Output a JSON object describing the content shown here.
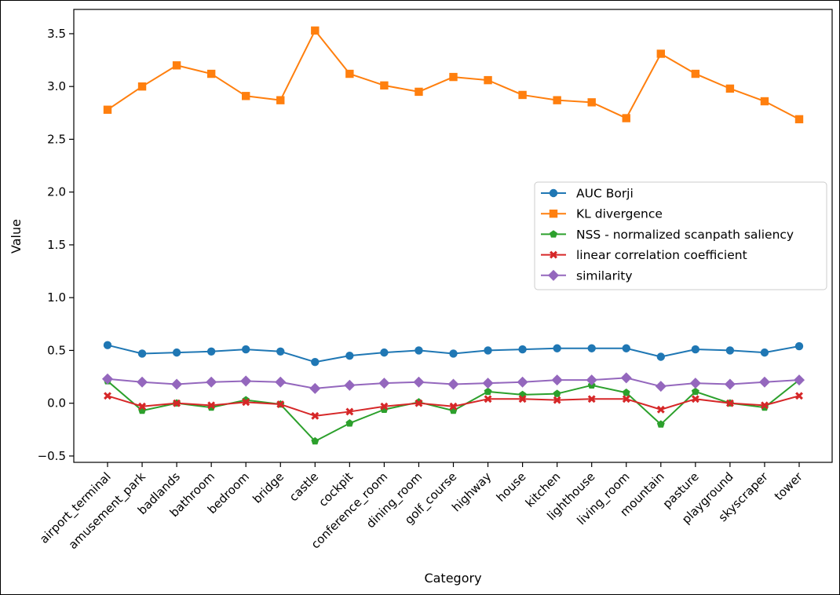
{
  "chart_data": {
    "type": "line",
    "title": "",
    "xlabel": "Category",
    "ylabel": "Value",
    "ylim": [
      -0.56,
      3.73
    ],
    "yticks": [
      -0.5,
      0.0,
      0.5,
      1.0,
      1.5,
      2.0,
      2.5,
      3.0,
      3.5
    ],
    "ytick_labels": [
      "−0.5",
      "0.0",
      "0.5",
      "1.0",
      "1.5",
      "2.0",
      "2.5",
      "3.0",
      "3.5"
    ],
    "grid": false,
    "legend_position": "center-right",
    "categories": [
      "airport_terminal",
      "amusement_park",
      "badlands",
      "bathroom",
      "bedroom",
      "bridge",
      "castle",
      "cockpit",
      "conference_room",
      "dining_room",
      "golf_course",
      "highway",
      "house",
      "kitchen",
      "lighthouse",
      "living_room",
      "mountain",
      "pasture",
      "playground",
      "skyscraper",
      "tower"
    ],
    "series": [
      {
        "name": "AUC Borji",
        "color": "#1f77b4",
        "marker": "circle",
        "values": [
          0.55,
          0.47,
          0.48,
          0.49,
          0.51,
          0.49,
          0.39,
          0.45,
          0.48,
          0.5,
          0.47,
          0.5,
          0.51,
          0.52,
          0.52,
          0.52,
          0.44,
          0.51,
          0.5,
          0.48,
          0.54
        ]
      },
      {
        "name": "KL divergence",
        "color": "#ff7f0e",
        "marker": "square",
        "values": [
          2.78,
          3.0,
          3.2,
          3.12,
          2.91,
          2.87,
          3.53,
          3.12,
          3.01,
          2.95,
          3.09,
          3.06,
          2.92,
          2.87,
          2.85,
          2.7,
          3.31,
          3.12,
          2.98,
          2.86,
          2.69
        ]
      },
      {
        "name": "NSS - normalized scanpath saliency",
        "color": "#2ca02c",
        "marker": "pentagon",
        "values": [
          0.21,
          -0.07,
          0.0,
          -0.04,
          0.03,
          -0.01,
          -0.36,
          -0.19,
          -0.06,
          0.01,
          -0.07,
          0.11,
          0.08,
          0.09,
          0.17,
          0.1,
          -0.2,
          0.11,
          0.0,
          -0.04,
          0.22
        ]
      },
      {
        "name": "linear correlation coefficient",
        "color": "#d62728",
        "marker": "x",
        "values": [
          0.07,
          -0.03,
          0.0,
          -0.02,
          0.01,
          -0.01,
          -0.12,
          -0.08,
          -0.03,
          0.0,
          -0.03,
          0.04,
          0.04,
          0.03,
          0.04,
          0.04,
          -0.06,
          0.04,
          0.0,
          -0.02,
          0.07
        ]
      },
      {
        "name": "similarity",
        "color": "#9467bd",
        "marker": "diamond",
        "values": [
          0.23,
          0.2,
          0.18,
          0.2,
          0.21,
          0.2,
          0.14,
          0.17,
          0.19,
          0.2,
          0.18,
          0.19,
          0.2,
          0.22,
          0.22,
          0.24,
          0.16,
          0.19,
          0.18,
          0.2,
          0.22
        ]
      }
    ]
  }
}
